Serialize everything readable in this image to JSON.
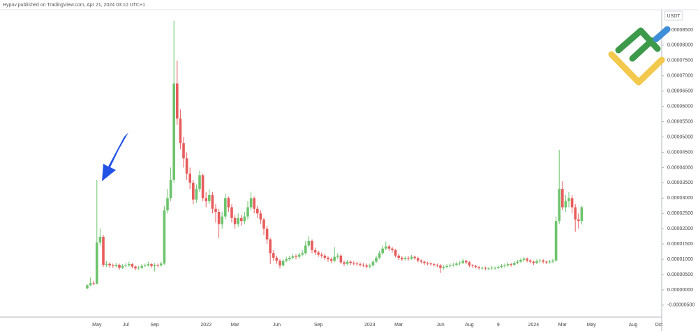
{
  "chart_data": {
    "type": "candlestick",
    "title": "Hypov published on TradingView.com, Apr 21, 2024 03:10 UTC+1",
    "y_axis_label": "USDT",
    "up_color": "#6cc46c",
    "down_color": "#e85c5c",
    "grid": false,
    "ylim": [
      -8.9e-06,
      9.16e-05
    ],
    "yticks": [
      {
        "value": -5e-06,
        "label": "-0.00000500"
      },
      {
        "value": 0,
        "label": "0.00000000"
      },
      {
        "value": 5e-06,
        "label": "0.00000500"
      },
      {
        "value": 1e-05,
        "label": "0.00001000"
      },
      {
        "value": 1.5e-05,
        "label": "0.00001500"
      },
      {
        "value": 2e-05,
        "label": "0.00002000"
      },
      {
        "value": 2.5e-05,
        "label": "0.00002500"
      },
      {
        "value": 3e-05,
        "label": "0.00003000"
      },
      {
        "value": 3.5e-05,
        "label": "0.00003500"
      },
      {
        "value": 4e-05,
        "label": "0.00004000"
      },
      {
        "value": 4.5e-05,
        "label": "0.00004500"
      },
      {
        "value": 5e-05,
        "label": "0.00005000"
      },
      {
        "value": 5.5e-05,
        "label": "0.00005500"
      },
      {
        "value": 6e-05,
        "label": "0.00006000"
      },
      {
        "value": 6.5e-05,
        "label": "0.00006500"
      },
      {
        "value": 7e-05,
        "label": "0.00007000"
      },
      {
        "value": 7.5e-05,
        "label": "0.00007500"
      },
      {
        "value": 8e-05,
        "label": "0.00008000"
      },
      {
        "value": 8.5e-05,
        "label": "0.00008500"
      }
    ],
    "categories": [
      null,
      null,
      null,
      "May",
      null,
      null,
      null,
      null,
      null,
      null,
      null,
      null,
      "Jul",
      null,
      null,
      null,
      null,
      null,
      null,
      null,
      null,
      "Sep",
      null,
      null,
      null,
      null,
      null,
      null,
      null,
      null,
      null,
      null,
      null,
      null,
      null,
      null,
      null,
      "2022",
      null,
      null,
      null,
      null,
      null,
      null,
      null,
      null,
      "Mar",
      null,
      null,
      null,
      null,
      null,
      null,
      null,
      null,
      null,
      null,
      null,
      null,
      "Jun",
      null,
      null,
      null,
      null,
      null,
      null,
      null,
      null,
      null,
      null,
      null,
      null,
      "Sep",
      null,
      null,
      null,
      null,
      null,
      null,
      null,
      null,
      null,
      null,
      null,
      null,
      null,
      null,
      null,
      "2023",
      null,
      null,
      null,
      null,
      null,
      null,
      null,
      null,
      "Mar",
      null,
      null,
      null,
      null,
      null,
      null,
      null,
      null,
      null,
      null,
      null,
      null,
      "Jun",
      null,
      null,
      null,
      null,
      null,
      null,
      null,
      null,
      "Aug",
      null,
      null,
      null,
      null,
      null,
      null,
      null,
      null,
      "9",
      null,
      null,
      null,
      null,
      null,
      null,
      null,
      null,
      null,
      null,
      "2024",
      null,
      null,
      null,
      null,
      null,
      null,
      null,
      null,
      "Mar",
      null,
      null,
      null,
      null,
      null,
      null,
      null,
      null,
      "May",
      null,
      null,
      null,
      null,
      null,
      null,
      null,
      null,
      null,
      null,
      null,
      null,
      "Aug",
      null,
      null,
      null,
      null,
      null,
      null,
      null,
      "Oct"
    ],
    "open": [
      5e-07,
      1.5e-06,
      2.2e-06,
      2e-06,
      1.55e-05,
      1.73e-05,
      8.2e-06,
      8.5e-06,
      8e-06,
      7.8e-06,
      8.2e-06,
      7.2e-06,
      7.8e-06,
      8e-06,
      8.4e-06,
      7.6e-06,
      7e-06,
      7.2e-06,
      7.8e-06,
      8e-06,
      8.4e-06,
      7.8e-06,
      8.2e-06,
      8e-06,
      8.6e-06,
      2.6e-05,
      3e-05,
      3.6e-05,
      6.75e-05,
      5.6e-05,
      4.8e-05,
      4.3e-05,
      3.8e-05,
      3.5e-05,
      2.95e-05,
      3.3e-05,
      3.75e-05,
      3e-05,
      2.9e-05,
      3.1e-05,
      2.65e-05,
      2.55e-05,
      2.15e-05,
      2.4e-05,
      3e-05,
      2.7e-05,
      2.35e-05,
      2.15e-05,
      2.35e-05,
      2.25e-05,
      2.4e-05,
      2.7e-05,
      3e-05,
      2.65e-05,
      2.5e-05,
      2.3e-05,
      2e-05,
      1.65e-05,
      1.2e-05,
      1.05e-05,
      9.5e-06,
      8e-06,
      9.5e-06,
      1e-05,
      1.05e-05,
      1.1e-05,
      1.08e-05,
      1.15e-05,
      1.2e-05,
      1.45e-05,
      1.6e-05,
      1.3e-05,
      1.22e-05,
      1.15e-05,
      1.12e-05,
      1.05e-05,
      1e-05,
      9.5e-06,
      1.08e-05,
      1.12e-05,
      9e-06,
      8.5e-06,
      9.2e-06,
      8.8e-06,
      8.6e-06,
      8.4e-06,
      8.2e-06,
      8e-06,
      7.6e-06,
      8e-06,
      9.2e-06,
      1.05e-05,
      1.2e-05,
      1.35e-05,
      1.42e-05,
      1.35e-05,
      1.3e-05,
      1.12e-05,
      1.05e-05,
      1e-05,
      1.04e-05,
      1.02e-05,
      1.08e-05,
      1.04e-05,
      9.6e-06,
      9.2e-06,
      8.8e-06,
      8.6e-06,
      8.4e-06,
      8.2e-06,
      8e-06,
      7.2e-06,
      7.5e-06,
      7.8e-06,
      8e-06,
      8.2e-06,
      8.6e-06,
      8.8e-06,
      9.5e-06,
      9e-06,
      8e-06,
      7.8e-06,
      7.5e-06,
      7.2e-06,
      7.2e-06,
      7e-06,
      7e-06,
      7.2e-06,
      7.2e-06,
      7.5e-06,
      7.8e-06,
      8e-06,
      8.4e-06,
      8.2e-06,
      8.8e-06,
      9.2e-06,
      9.8e-06,
      1.02e-05,
      9.6e-06,
      9.2e-06,
      8.8e-06,
      9.4e-06,
      9.6e-06,
      9.2e-06,
      9e-06,
      9.2e-06,
      9.6e-06,
      2.25e-05,
      3.3e-05,
      2.7e-05,
      2.9e-05,
      3e-05,
      2.7e-05,
      2.3e-05,
      2.25e-05,
      null,
      null,
      null,
      null,
      null,
      null,
      null,
      null,
      null,
      null,
      null,
      null,
      null,
      null,
      null,
      null,
      null,
      null,
      null,
      null,
      null,
      null,
      null,
      null
    ],
    "high": [
      1.8e-06,
      4e-06,
      3e-06,
      3.6e-05,
      2e-05,
      1.8e-05,
      9.5e-06,
      9e-06,
      8.6e-06,
      8.8e-06,
      8.6e-06,
      8.4e-06,
      8.8e-06,
      9.2e-06,
      8.8e-06,
      8e-06,
      7.8e-06,
      8.4e-06,
      8.6e-06,
      9.2e-06,
      8.8e-06,
      8.8e-06,
      8.6e-06,
      9.2e-06,
      2.75e-05,
      3.3e-05,
      4e-05,
      8.8e-05,
      7.5e-05,
      5.9e-05,
      5e-05,
      4.5e-05,
      4e-05,
      3.6e-05,
      3.45e-05,
      3.9e-05,
      3.8e-05,
      3.2e-05,
      3.3e-05,
      3.2e-05,
      2.8e-05,
      2.65e-05,
      2.55e-05,
      3.15e-05,
      3.05e-05,
      2.8e-05,
      2.45e-05,
      2.5e-05,
      2.45e-05,
      2.55e-05,
      2.9e-05,
      3.2e-05,
      3.05e-05,
      2.75e-05,
      2.6e-05,
      2.35e-05,
      2.1e-05,
      1.7e-05,
      1.3e-05,
      1.12e-05,
      1e-05,
      1e-05,
      1.08e-05,
      1.12e-05,
      1.18e-05,
      1.16e-05,
      1.22e-05,
      1.3e-05,
      1.6e-05,
      1.75e-05,
      1.65e-05,
      1.38e-05,
      1.28e-05,
      1.22e-05,
      1.18e-05,
      1.1e-05,
      1.06e-05,
      1.4e-05,
      1.2e-05,
      1.16e-05,
      9.6e-06,
      9.8e-06,
      9.6e-06,
      9.4e-06,
      9.2e-06,
      9e-06,
      8.8e-06,
      8.6e-06,
      8.6e-06,
      9.8e-06,
      1.12e-05,
      1.28e-05,
      1.45e-05,
      1.58e-05,
      1.48e-05,
      1.4e-05,
      1.34e-05,
      1.18e-05,
      1.1e-05,
      1.1e-05,
      1.1e-05,
      1.14e-05,
      1.12e-05,
      1.08e-05,
      1e-05,
      9.6e-06,
      9.2e-06,
      9e-06,
      8.8e-06,
      8.6e-06,
      8.4e-06,
      8e-06,
      8.4e-06,
      8.6e-06,
      8.8e-06,
      9.2e-06,
      9.4e-06,
      1.02e-05,
      9.8e-06,
      9.4e-06,
      8.4e-06,
      8.2e-06,
      7.8e-06,
      7.6e-06,
      7.6e-06,
      7.4e-06,
      7.8e-06,
      7.6e-06,
      8e-06,
      8.4e-06,
      8.6e-06,
      9e-06,
      8.8e-06,
      9.4e-06,
      9.8e-06,
      1.04e-05,
      1.08e-05,
      1.06e-05,
      1e-05,
      9.6e-06,
      1e-05,
      1.02e-05,
      1e-05,
      9.6e-06,
      9.8e-06,
      1.02e-05,
      2.4e-05,
      4.58e-05,
      3.55e-05,
      3.1e-05,
      3.2e-05,
      3.1e-05,
      2.8e-05,
      2.5e-05,
      2.75e-05,
      null,
      null,
      null,
      null,
      null,
      null,
      null,
      null,
      null,
      null,
      null,
      null,
      null,
      null,
      null,
      null,
      null,
      null,
      null,
      null,
      null,
      null,
      null,
      null
    ],
    "low": [
      2e-07,
      1.2e-06,
      1.6e-06,
      1.8e-06,
      1.45e-05,
      7.5e-06,
      7.5e-06,
      7.2e-06,
      7.2e-06,
      7.4e-06,
      6.6e-06,
      6.8e-06,
      7.4e-06,
      7.6e-06,
      7e-06,
      6.4e-06,
      6.6e-06,
      6.8e-06,
      7.4e-06,
      7.6e-06,
      7.2e-06,
      6e-06,
      7.4e-06,
      7.6e-06,
      8.2e-06,
      2.5e-05,
      2.9e-05,
      3.5e-05,
      5.4e-05,
      4.6e-05,
      4e-05,
      3.6e-05,
      3.3e-05,
      2.8e-05,
      2.85e-05,
      3.2e-05,
      2.9e-05,
      2.7e-05,
      2.8e-05,
      2.5e-05,
      2.2e-05,
      1.7e-05,
      2e-05,
      2.3e-05,
      2.55e-05,
      2.2e-05,
      2e-05,
      2.05e-05,
      2.1e-05,
      2.15e-05,
      2.3e-05,
      2.6e-05,
      2.5e-05,
      2.35e-05,
      2.15e-05,
      1.8e-05,
      1.5e-05,
      8.5e-06,
      9.5e-06,
      8.5e-06,
      7e-06,
      7.6e-06,
      9e-06,
      9.5e-06,
      1e-05,
      1e-05,
      1.02e-05,
      1.1e-05,
      1.15e-05,
      1.4e-05,
      1.2e-05,
      1.14e-05,
      1.08e-05,
      1.04e-05,
      9.8e-06,
      9.2e-06,
      8.8e-06,
      9e-06,
      1e-05,
      8.4e-06,
      7.8e-06,
      8e-06,
      8.2e-06,
      8e-06,
      7.8e-06,
      7.6e-06,
      7.4e-06,
      7e-06,
      7e-06,
      7.6e-06,
      8.8e-06,
      1e-05,
      1.15e-05,
      1.3e-05,
      1.28e-05,
      1.22e-05,
      1.06e-05,
      9.8e-06,
      9.4e-06,
      9.6e-06,
      9.6e-06,
      9.8e-06,
      9.8e-06,
      9e-06,
      8.6e-06,
      8.2e-06,
      8e-06,
      7.8e-06,
      7.6e-06,
      7.4e-06,
      5.5e-06,
      6.6e-06,
      7e-06,
      7.2e-06,
      7.6e-06,
      7.8e-06,
      8e-06,
      8.4e-06,
      8.4e-06,
      7.4e-06,
      7.2e-06,
      7e-06,
      6.6e-06,
      6.6e-06,
      6.4e-06,
      6.4e-06,
      6.6e-06,
      6.6e-06,
      6.8e-06,
      7e-06,
      7.2e-06,
      7.6e-06,
      7.6e-06,
      7.8e-06,
      8.4e-06,
      8.8e-06,
      9.2e-06,
      9e-06,
      8.6e-06,
      8.2e-06,
      8.4e-06,
      8.8e-06,
      8.6e-06,
      8.4e-06,
      8.6e-06,
      8.8e-06,
      9.2e-06,
      2.15e-05,
      2.6e-05,
      2.55e-05,
      2.7e-05,
      2.5e-05,
      1.9e-05,
      2e-05,
      2.15e-05,
      null,
      null,
      null,
      null,
      null,
      null,
      null,
      null,
      null,
      null,
      null,
      null,
      null,
      null,
      null,
      null,
      null,
      null,
      null,
      null,
      null,
      null,
      null,
      null
    ],
    "close": [
      1.5e-06,
      2.2e-06,
      2e-06,
      1.55e-05,
      1.73e-05,
      8.2e-06,
      8.5e-06,
      8e-06,
      7.8e-06,
      8.2e-06,
      7.2e-06,
      7.8e-06,
      8e-06,
      8.4e-06,
      7.6e-06,
      7e-06,
      7.2e-06,
      7.8e-06,
      8e-06,
      8.4e-06,
      7.8e-06,
      8.2e-06,
      8e-06,
      8.6e-06,
      2.6e-05,
      3e-05,
      3.6e-05,
      6.75e-05,
      5.6e-05,
      4.8e-05,
      4.3e-05,
      3.8e-05,
      3.5e-05,
      2.95e-05,
      3.3e-05,
      3.75e-05,
      3e-05,
      2.9e-05,
      3.1e-05,
      2.65e-05,
      2.55e-05,
      2.15e-05,
      2.4e-05,
      3e-05,
      2.7e-05,
      2.35e-05,
      2.15e-05,
      2.35e-05,
      2.25e-05,
      2.4e-05,
      2.7e-05,
      3e-05,
      2.65e-05,
      2.5e-05,
      2.3e-05,
      2e-05,
      1.65e-05,
      1.2e-05,
      1.05e-05,
      9.5e-06,
      8e-06,
      9.5e-06,
      1e-05,
      1.05e-05,
      1.1e-05,
      1.08e-05,
      1.15e-05,
      1.2e-05,
      1.45e-05,
      1.6e-05,
      1.3e-05,
      1.22e-05,
      1.15e-05,
      1.12e-05,
      1.05e-05,
      1e-05,
      9.5e-06,
      1.08e-05,
      1.12e-05,
      9e-06,
      8.5e-06,
      9.2e-06,
      8.8e-06,
      8.6e-06,
      8.4e-06,
      8.2e-06,
      8e-06,
      7.6e-06,
      8e-06,
      9.2e-06,
      1.05e-05,
      1.2e-05,
      1.35e-05,
      1.42e-05,
      1.35e-05,
      1.3e-05,
      1.12e-05,
      1.05e-05,
      1e-05,
      1.04e-05,
      1.02e-05,
      1.08e-05,
      1.04e-05,
      9.6e-06,
      9.2e-06,
      8.8e-06,
      8.6e-06,
      8.4e-06,
      8.2e-06,
      8e-06,
      7.2e-06,
      7.5e-06,
      7.8e-06,
      8e-06,
      8.2e-06,
      8.6e-06,
      8.8e-06,
      9.5e-06,
      9e-06,
      8e-06,
      7.8e-06,
      7.5e-06,
      7.2e-06,
      7.2e-06,
      7e-06,
      7e-06,
      7.2e-06,
      7.2e-06,
      7.5e-06,
      7.8e-06,
      8e-06,
      8.4e-06,
      8.2e-06,
      8.8e-06,
      9.2e-06,
      9.8e-06,
      1.02e-05,
      9.6e-06,
      9.2e-06,
      8.8e-06,
      9.4e-06,
      9.6e-06,
      9.2e-06,
      9e-06,
      9.2e-06,
      9.6e-06,
      2.25e-05,
      3.3e-05,
      2.7e-05,
      2.9e-05,
      3e-05,
      2.7e-05,
      2.3e-05,
      2.25e-05,
      2.7e-05,
      null,
      null,
      null,
      null,
      null,
      null,
      null,
      null,
      null,
      null,
      null,
      null,
      null,
      null,
      null,
      null,
      null,
      null,
      null,
      null,
      null,
      null,
      null,
      null
    ]
  }
}
